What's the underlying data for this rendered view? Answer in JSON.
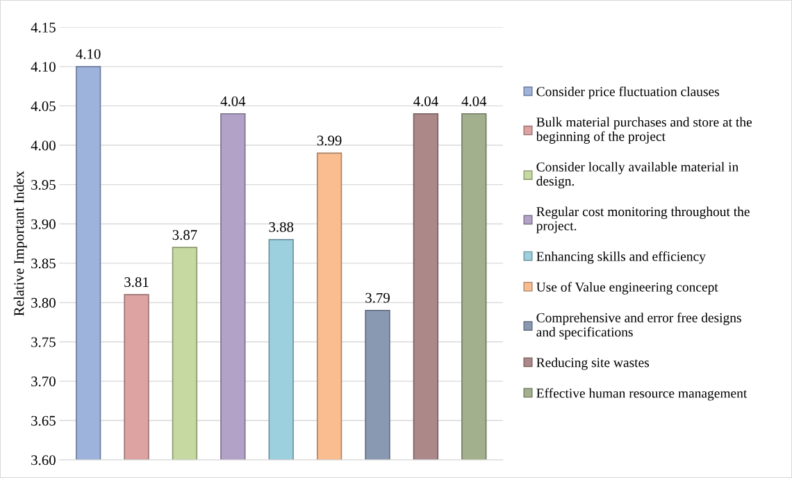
{
  "chart_data": {
    "type": "bar",
    "ylabel": "Relative Important Index",
    "categories": [
      null,
      null,
      null,
      null,
      null,
      null,
      null,
      null,
      null
    ],
    "ylim": [
      3.6,
      4.15
    ],
    "yticks": [
      {
        "value": 3.6,
        "label": "3.60"
      },
      {
        "value": 3.65,
        "label": "3.65"
      },
      {
        "value": 3.7,
        "label": "3.70"
      },
      {
        "value": 3.75,
        "label": "3.75"
      },
      {
        "value": 3.8,
        "label": "3.80"
      },
      {
        "value": 3.85,
        "label": "3.85"
      },
      {
        "value": 3.9,
        "label": "3.90"
      },
      {
        "value": 3.95,
        "label": "3.95"
      },
      {
        "value": 4.0,
        "label": "4.00"
      },
      {
        "value": 4.05,
        "label": "4.05"
      },
      {
        "value": 4.1,
        "label": "4.10"
      },
      {
        "value": 4.15,
        "label": "4.15"
      }
    ],
    "grid": "y",
    "legend": "right",
    "data_labels": true,
    "series": [
      {
        "name": "Consider price fluctuation clauses",
        "color": "#9db3dc",
        "values": [
          4.1,
          null,
          null,
          null,
          null,
          null,
          null,
          null,
          null
        ],
        "value_labels": [
          "4.10",
          null,
          null,
          null,
          null,
          null,
          null,
          null,
          null
        ]
      },
      {
        "name": "Bulk material purchases and store at the\nbeginning of the project",
        "color": "#dca3a2",
        "values": [
          null,
          3.81,
          null,
          null,
          null,
          null,
          null,
          null,
          null
        ],
        "value_labels": [
          null,
          "3.81",
          null,
          null,
          null,
          null,
          null,
          null,
          null
        ]
      },
      {
        "name": "Consider locally available material in\ndesign.",
        "color": "#c6d9a0",
        "values": [
          null,
          null,
          3.87,
          null,
          null,
          null,
          null,
          null,
          null
        ],
        "value_labels": [
          null,
          null,
          "3.87",
          null,
          null,
          null,
          null,
          null,
          null
        ]
      },
      {
        "name": "Regular cost monitoring throughout the\nproject.",
        "color": "#b2a2c8",
        "values": [
          null,
          null,
          null,
          4.04,
          null,
          null,
          null,
          null,
          null
        ],
        "value_labels": [
          null,
          null,
          null,
          "4.04",
          null,
          null,
          null,
          null,
          null
        ]
      },
      {
        "name": "Enhancing skills and efficiency",
        "color": "#9dd0df",
        "values": [
          null,
          null,
          null,
          null,
          3.88,
          null,
          null,
          null,
          null
        ],
        "value_labels": [
          null,
          null,
          null,
          null,
          "3.88",
          null,
          null,
          null,
          null
        ]
      },
      {
        "name": "Use of Value engineering concept",
        "color": "#f9bd90",
        "values": [
          null,
          null,
          null,
          null,
          null,
          3.99,
          null,
          null,
          null
        ],
        "value_labels": [
          null,
          null,
          null,
          null,
          null,
          "3.99",
          null,
          null,
          null
        ]
      },
      {
        "name": "Comprehensive and error free designs\nand specifications",
        "color": "#8a99b2",
        "values": [
          null,
          null,
          null,
          null,
          null,
          null,
          3.79,
          null,
          null
        ],
        "value_labels": [
          null,
          null,
          null,
          null,
          null,
          null,
          "3.79",
          null,
          null
        ]
      },
      {
        "name": "Reducing site wastes",
        "color": "#ad8889",
        "values": [
          null,
          null,
          null,
          null,
          null,
          null,
          null,
          4.04,
          null
        ],
        "value_labels": [
          null,
          null,
          null,
          null,
          null,
          null,
          null,
          "4.04",
          null
        ]
      },
      {
        "name": "Effective human resource management",
        "color": "#a3b08e",
        "values": [
          null,
          null,
          null,
          null,
          null,
          null,
          null,
          null,
          4.04
        ],
        "value_labels": [
          null,
          null,
          null,
          null,
          null,
          null,
          null,
          null,
          "4.04"
        ]
      }
    ]
  }
}
